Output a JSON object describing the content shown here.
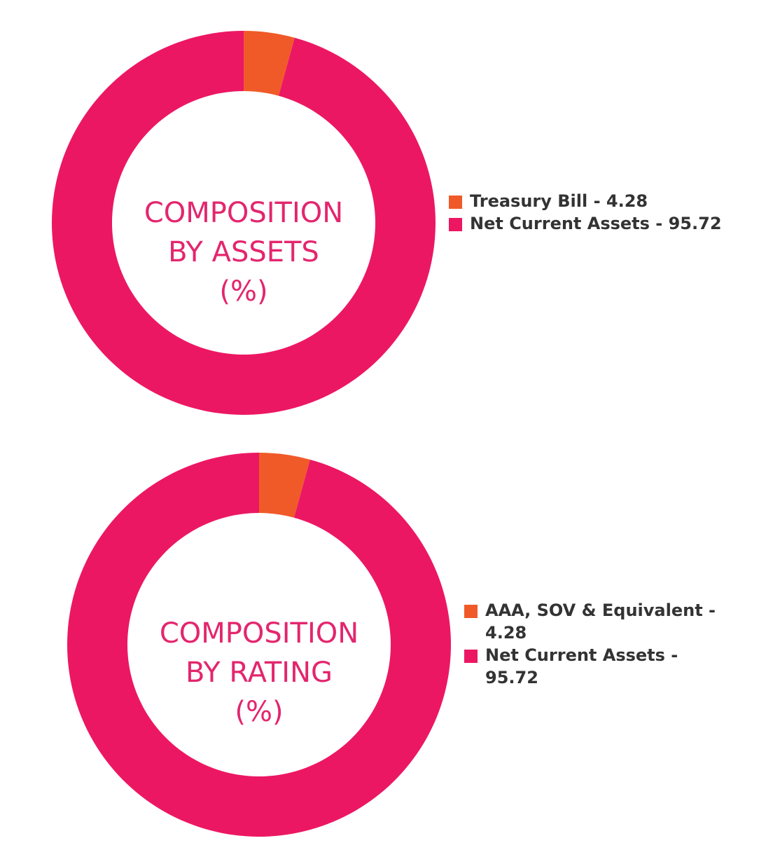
{
  "colors": {
    "treasury": "#f05a28",
    "net_current": "#ec1763",
    "title": "#e3266e",
    "legend_text": "#333333"
  },
  "chart_data": [
    {
      "type": "pie",
      "variant": "donut",
      "center_title": [
        "COMPOSITION",
        "BY ASSETS",
        "(%)"
      ],
      "categories": [
        "Treasury Bill",
        "Net Current Assets"
      ],
      "values": [
        4.28,
        95.72
      ],
      "legend_labels": [
        "Treasury Bill - 4.28",
        "Net Current Assets - 95.72"
      ],
      "legend": "right"
    },
    {
      "type": "pie",
      "variant": "donut",
      "center_title": [
        "COMPOSITION",
        "BY RATING",
        "(%)"
      ],
      "categories": [
        "AAA, SOV & Equivalent",
        "Net Current Assets"
      ],
      "values": [
        4.28,
        95.72
      ],
      "legend_labels": [
        "AAA, SOV & Equivalent - 4.28",
        "Net Current Assets - 95.72"
      ],
      "legend": "right"
    }
  ]
}
